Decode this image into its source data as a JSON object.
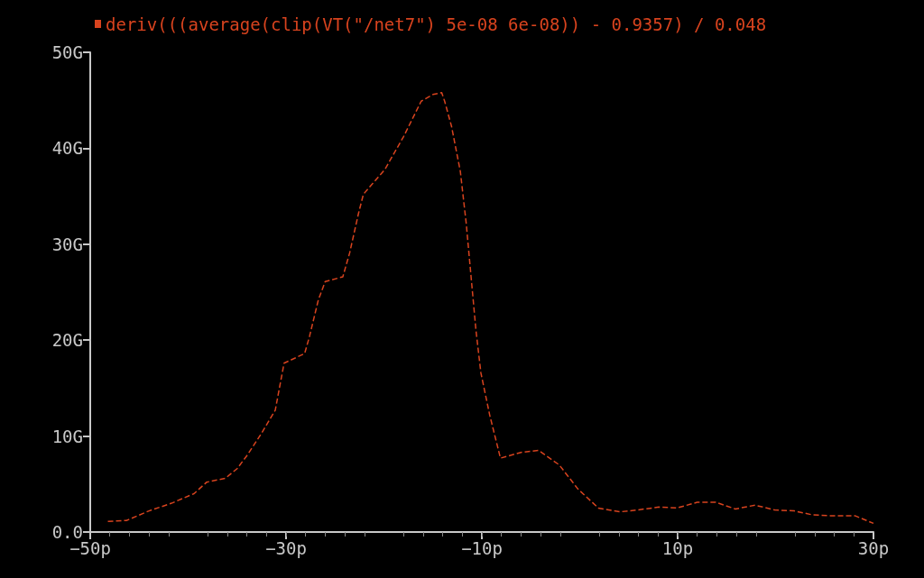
{
  "chart_data": {
    "type": "line",
    "line_style": "dashed",
    "legend": "top",
    "grid": false,
    "series": [
      {
        "name": "deriv(((average(clip(VT(\"/net7\") 5e-08 6e-08)) - 0.9357) / 0.048",
        "color": "#d8431e",
        "x": [
          -48.2,
          -46.3,
          -44,
          -41.7,
          -39.4,
          -38.1,
          -36.2,
          -35,
          -33.9,
          -32.5,
          -31.1,
          -30.2,
          -28.1,
          -27.6,
          -26.7,
          -26,
          -24.2,
          -23.5,
          -22.6,
          -22.1,
          -19.9,
          -18,
          -16.2,
          -15,
          -14.1,
          -13.8,
          -13.1,
          -12.2,
          -11.6,
          -11.1,
          -10.6,
          -10.1,
          -9.2,
          -8.1,
          -6,
          -4.2,
          -2.1,
          -0.2,
          1.9,
          4.1,
          5.9,
          8.1,
          9.9,
          12,
          13.9,
          15.9,
          17.9,
          19.9,
          21.9,
          23.7,
          25.6,
          28.1,
          30
        ],
        "values": [
          1.1,
          1.2,
          2.2,
          3,
          4,
          5.2,
          5.6,
          6.6,
          8.1,
          10.3,
          12.7,
          17.6,
          18.6,
          20.4,
          24.2,
          26.1,
          26.6,
          29.1,
          33.2,
          35.2,
          37.8,
          41.2,
          44.9,
          45.6,
          45.8,
          44.9,
          42.3,
          37.6,
          32.2,
          26.6,
          21,
          16.6,
          12.2,
          7.7,
          8.3,
          8.5,
          7,
          4.5,
          2.5,
          2.1,
          2.3,
          2.6,
          2.5,
          3.1,
          3.1,
          2.4,
          2.8,
          2.3,
          2.2,
          1.8,
          1.7,
          1.7,
          0.9
        ]
      }
    ],
    "xlim": [
      -50,
      30
    ],
    "xticks": [
      {
        "value": -50,
        "label": "−50p"
      },
      {
        "value": -30,
        "label": "−30p"
      },
      {
        "value": -10,
        "label": "−10p"
      },
      {
        "value": 10,
        "label": "10p"
      },
      {
        "value": 30,
        "label": "30p"
      }
    ],
    "ylim": [
      0,
      50
    ],
    "yticks": [
      {
        "value": 0,
        "label": "0.0"
      },
      {
        "value": 10,
        "label": "10G"
      },
      {
        "value": 20,
        "label": "20G"
      },
      {
        "value": 30,
        "label": "30G"
      },
      {
        "value": 40,
        "label": "40G"
      },
      {
        "value": 50,
        "label": "50G"
      }
    ]
  }
}
